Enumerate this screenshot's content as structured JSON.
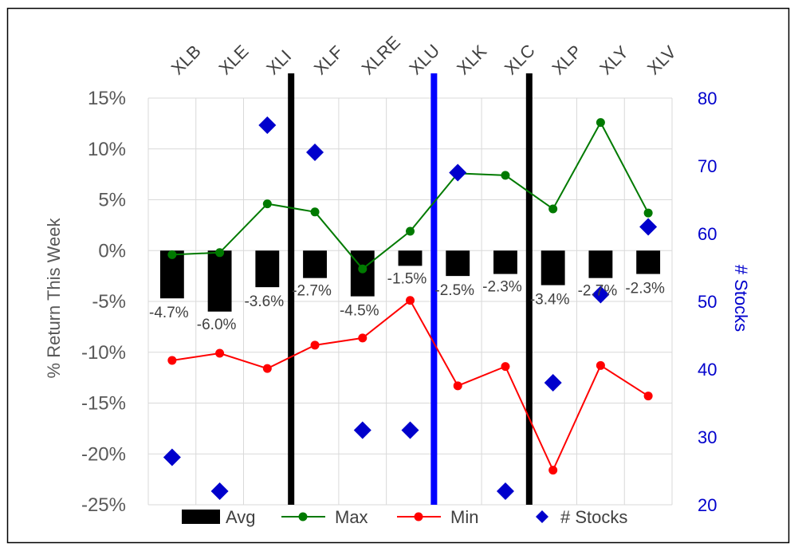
{
  "chart_data": {
    "type": "combo",
    "categories": [
      "XLB",
      "XLE",
      "XLI",
      "XLF",
      "XLRE",
      "XLU",
      "XLK",
      "XLC",
      "XLP",
      "XLY",
      "XLV"
    ],
    "series": [
      {
        "name": "Avg",
        "kind": "bar",
        "axis": "left",
        "color": "#000000",
        "values": [
          -4.7,
          -6.0,
          -3.6,
          -2.7,
          -4.5,
          -1.5,
          -2.5,
          -2.3,
          -3.4,
          -2.7,
          -2.3
        ],
        "labels": [
          "-4.7%",
          "-6.0%",
          "-3.6%",
          "-2.7%",
          "-4.5%",
          "-1.5%",
          "-2.5%",
          "-2.3%",
          "-3.4%",
          "-2.7%",
          "-2.3%"
        ]
      },
      {
        "name": "Max",
        "kind": "line",
        "axis": "left",
        "color": "#007A00",
        "values": [
          -0.4,
          -0.2,
          4.6,
          3.8,
          -1.8,
          1.9,
          7.6,
          7.4,
          4.1,
          12.6,
          3.7
        ]
      },
      {
        "name": "Min",
        "kind": "line",
        "axis": "left",
        "color": "#FF0000",
        "values": [
          -10.8,
          -10.1,
          -11.6,
          -9.3,
          -8.6,
          -4.9,
          -13.3,
          -11.4,
          -21.6,
          -11.3,
          -14.3
        ]
      },
      {
        "name": "# Stocks",
        "kind": "scatter",
        "axis": "right",
        "color": "#0000CC",
        "values": [
          27,
          22,
          76,
          72,
          31,
          31,
          69,
          22,
          38,
          51,
          61
        ]
      }
    ],
    "separators": [
      {
        "after_index": 2,
        "color": "#000000"
      },
      {
        "after_index": 5,
        "color": "#0000FF"
      },
      {
        "after_index": 7,
        "color": "#000000"
      }
    ],
    "y_left": {
      "label": "% Return This Week",
      "min": -25,
      "max": 15,
      "step": 5,
      "ticks": [
        "15%",
        "10%",
        "5%",
        "0%",
        "-5%",
        "-10%",
        "-15%",
        "-20%",
        "-25%"
      ]
    },
    "y_right": {
      "label": "# Stocks",
      "min": 20,
      "max": 80,
      "step": 10,
      "color": "#0000CC",
      "ticks": [
        "80",
        "70",
        "60",
        "50",
        "40",
        "30",
        "20"
      ]
    },
    "legend": {
      "position": "bottom",
      "items": [
        {
          "label": "Avg",
          "kind": "bar"
        },
        {
          "label": "Max",
          "kind": "line"
        },
        {
          "label": "Min",
          "kind": "line"
        },
        {
          "label": "# Stocks",
          "kind": "scatter"
        }
      ]
    },
    "grid": true
  }
}
